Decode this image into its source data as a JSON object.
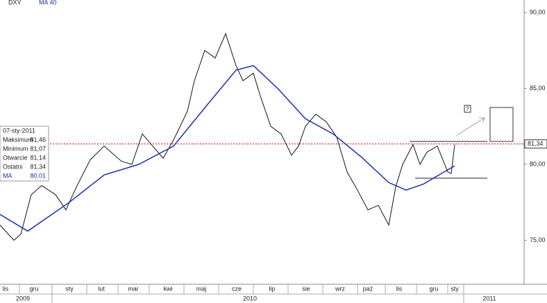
{
  "chart_data": {
    "type": "line",
    "header": {
      "symbol": "DXY",
      "indicator": "MA 40"
    },
    "xlim": [
      0,
      755
    ],
    "ylim": [
      72.1,
      90.82
    ],
    "yticks": [
      {
        "value": 75,
        "label": "75,00"
      },
      {
        "value": 80,
        "label": "80,00"
      },
      {
        "value": 85,
        "label": "85,00"
      },
      {
        "value": 90,
        "label": "90,00"
      }
    ],
    "months": [
      "lis",
      "gru",
      "sty",
      "lut",
      "mar",
      "kwi",
      "maj",
      "cze",
      "lip",
      "sie",
      "wrz",
      "paź",
      "lis",
      "gru",
      "sty"
    ],
    "years": [
      "2009",
      "2010",
      "2011"
    ],
    "series": [
      {
        "name": "DXY",
        "color": "#111111",
        "x": [
          0,
          20,
          30,
          45,
          60,
          80,
          95,
          110,
          130,
          150,
          175,
          190,
          205,
          220,
          235,
          250,
          270,
          280,
          295,
          310,
          325,
          340,
          350,
          365,
          375,
          390,
          405,
          420,
          430,
          440,
          455,
          470,
          485,
          500,
          515,
          530,
          545,
          560,
          570,
          580,
          595,
          605,
          615,
          630,
          645,
          650,
          655
        ],
        "values": [
          76.0,
          75.0,
          75.4,
          78.0,
          78.6,
          78.0,
          77.0,
          78.5,
          80.3,
          81.2,
          80.2,
          80.0,
          82.0,
          81.2,
          80.4,
          81.6,
          83.5,
          85.5,
          87.5,
          87.0,
          88.6,
          86.5,
          85.5,
          86.0,
          84.5,
          82.5,
          82.0,
          80.6,
          81.2,
          82.5,
          83.3,
          82.8,
          81.8,
          79.5,
          78.3,
          77.0,
          77.3,
          76.0,
          78.5,
          80.0,
          81.3,
          80.0,
          80.8,
          81.2,
          79.5,
          79.4,
          81.3
        ]
      },
      {
        "name": "MA",
        "color": "#1a2fb0",
        "x": [
          0,
          40,
          100,
          150,
          200,
          250,
          300,
          340,
          365,
          400,
          440,
          480,
          520,
          560,
          585,
          610,
          640,
          655
        ],
        "values": [
          76.7,
          75.6,
          77.5,
          79.3,
          80.0,
          81.2,
          84.0,
          86.2,
          86.5,
          85.0,
          83.0,
          82.0,
          80.5,
          78.8,
          78.3,
          78.7,
          79.5,
          79.9
        ]
      }
    ],
    "last": {
      "value": 81.34,
      "label": "81,34",
      "color": "#cc0000"
    },
    "info": {
      "date": "07-sty-2011",
      "rows": [
        {
          "label": "Maksimum",
          "value": "81,46"
        },
        {
          "label": "Minimum",
          "value": "81,07"
        },
        {
          "label": "Otwarcie",
          "value": "81,14"
        },
        {
          "label": "Ostatni",
          "value": "81,34"
        },
        {
          "label": "MA",
          "value": "80,01"
        }
      ]
    },
    "annotation": "?"
  }
}
